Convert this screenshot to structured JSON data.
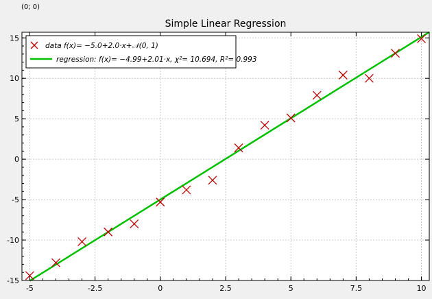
{
  "coordinate_readout": "(0; 0)",
  "chart_data": {
    "type": "scatter",
    "title": "Simple Linear Regression",
    "xlabel": "",
    "ylabel": "",
    "xlim": [
      -5.3,
      10.3
    ],
    "ylim": [
      -15,
      15.7
    ],
    "x_ticks": [
      -5,
      -2.5,
      0,
      2.5,
      5,
      7.5,
      10
    ],
    "x_tick_labels": [
      "-5",
      "-2.5",
      "0",
      "2.5",
      "5",
      "7.5",
      "10"
    ],
    "y_ticks": [
      -15,
      -10,
      -5,
      0,
      5,
      10,
      15
    ],
    "y_tick_labels": [
      "-15",
      "-10",
      "-5",
      "0",
      "5",
      "10",
      "15"
    ],
    "grid": true,
    "legend_position": "top-left",
    "series": [
      {
        "name": "data f(x)= −5.0+2.0·x+𝒩(0, 1)",
        "kind": "scatter",
        "marker": "x",
        "color": "#c00000",
        "points": [
          {
            "x": -5,
            "y": -14.4
          },
          {
            "x": -4,
            "y": -12.8
          },
          {
            "x": -3,
            "y": -10.2
          },
          {
            "x": -2,
            "y": -9.0
          },
          {
            "x": -1,
            "y": -8.0
          },
          {
            "x": 0,
            "y": -5.3
          },
          {
            "x": 1,
            "y": -3.8
          },
          {
            "x": 2,
            "y": -2.6
          },
          {
            "x": 3,
            "y": 1.4
          },
          {
            "x": 4,
            "y": 4.2
          },
          {
            "x": 5,
            "y": 5.1
          },
          {
            "x": 6,
            "y": 7.9
          },
          {
            "x": 7,
            "y": 10.4
          },
          {
            "x": 8,
            "y": 10.0
          },
          {
            "x": 9,
            "y": 13.1
          },
          {
            "x": 10,
            "y": 14.9
          }
        ]
      },
      {
        "name": "regression: f(x)= −4.99+2.01·x, χ²= 10.694, R²= 0.993",
        "kind": "line",
        "color": "#00c000",
        "intercept": -4.99,
        "slope": 2.01
      }
    ]
  }
}
